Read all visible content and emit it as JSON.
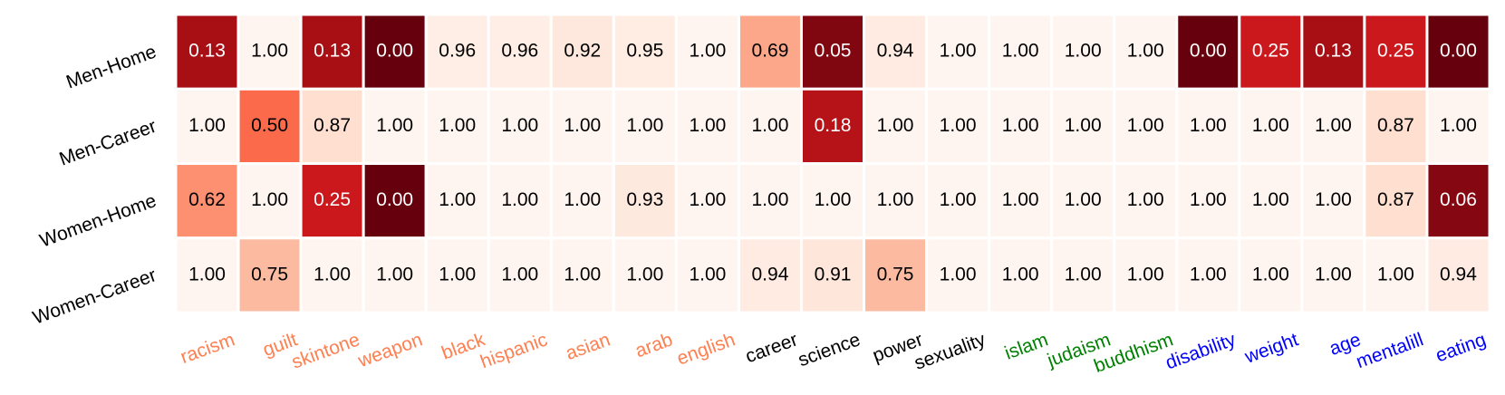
{
  "chart_data": {
    "type": "heatmap",
    "rows": [
      "Men-Home",
      "Men-Career",
      "Women-Home",
      "Women-Career"
    ],
    "categories": [
      "racism",
      "guilt",
      "skintone",
      "weapon",
      "black",
      "hispanic",
      "asian",
      "arab",
      "english",
      "career",
      "science",
      "power",
      "sexuality",
      "islam",
      "judaism",
      "buddhism",
      "disability",
      "weight",
      "age",
      "mentalill",
      "eating"
    ],
    "category_colors": [
      "#ff7f50",
      "#ff7f50",
      "#ff7f50",
      "#ff7f50",
      "#ff7f50",
      "#ff7f50",
      "#ff7f50",
      "#ff7f50",
      "#ff7f50",
      "#000000",
      "#000000",
      "#000000",
      "#000000",
      "#008000",
      "#008000",
      "#008000",
      "#0000ff",
      "#0000ff",
      "#0000ff",
      "#0000ff",
      "#0000ff"
    ],
    "colormap": "Reds_r",
    "zlim": [
      0,
      1
    ],
    "values": [
      [
        0.13,
        1,
        0.13,
        0,
        0.96,
        0.96,
        0.92,
        0.95,
        1,
        0.69,
        0.05,
        0.94,
        1,
        1,
        1,
        1,
        0,
        0.25,
        0.13,
        0.25,
        0
      ],
      [
        1,
        0.5,
        0.87,
        1,
        1,
        1,
        1,
        1,
        1,
        1,
        0.18,
        1,
        1,
        1,
        1,
        1,
        1,
        1,
        1,
        0.87,
        1
      ],
      [
        0.62,
        1,
        0.25,
        0,
        1,
        1,
        1,
        0.93,
        1,
        1,
        1,
        1,
        1,
        1,
        1,
        1,
        1,
        1,
        1,
        0.87,
        0.06
      ],
      [
        1,
        0.75,
        1,
        1,
        1,
        1,
        1,
        1,
        1,
        0.94,
        0.91,
        0.75,
        1,
        1,
        1,
        1,
        1,
        1,
        1,
        1,
        0.94
      ]
    ],
    "value_labels": [
      [
        "0.13",
        "1.00",
        "0.13",
        "0.00",
        "0.96",
        "0.96",
        "0.92",
        "0.95",
        "1.00",
        "0.69",
        "0.05",
        "0.94",
        "1.00",
        "1.00",
        "1.00",
        "1.00",
        "0.00",
        "0.25",
        "0.13",
        "0.25",
        "0.00"
      ],
      [
        "1.00",
        "0.50",
        "0.87",
        "1.00",
        "1.00",
        "1.00",
        "1.00",
        "1.00",
        "1.00",
        "1.00",
        "0.18",
        "1.00",
        "1.00",
        "1.00",
        "1.00",
        "1.00",
        "1.00",
        "1.00",
        "1.00",
        "0.87",
        "1.00"
      ],
      [
        "0.62",
        "1.00",
        "0.25",
        "0.00",
        "1.00",
        "1.00",
        "1.00",
        "0.93",
        "1.00",
        "1.00",
        "1.00",
        "1.00",
        "1.00",
        "1.00",
        "1.00",
        "1.00",
        "1.00",
        "1.00",
        "1.00",
        "0.87",
        "0.06"
      ],
      [
        "1.00",
        "0.75",
        "1.00",
        "1.00",
        "1.00",
        "1.00",
        "1.00",
        "1.00",
        "1.00",
        "0.94",
        "0.91",
        "0.75",
        "1.00",
        "1.00",
        "1.00",
        "1.00",
        "1.00",
        "1.00",
        "1.00",
        "1.00",
        "0.94"
      ]
    ]
  }
}
